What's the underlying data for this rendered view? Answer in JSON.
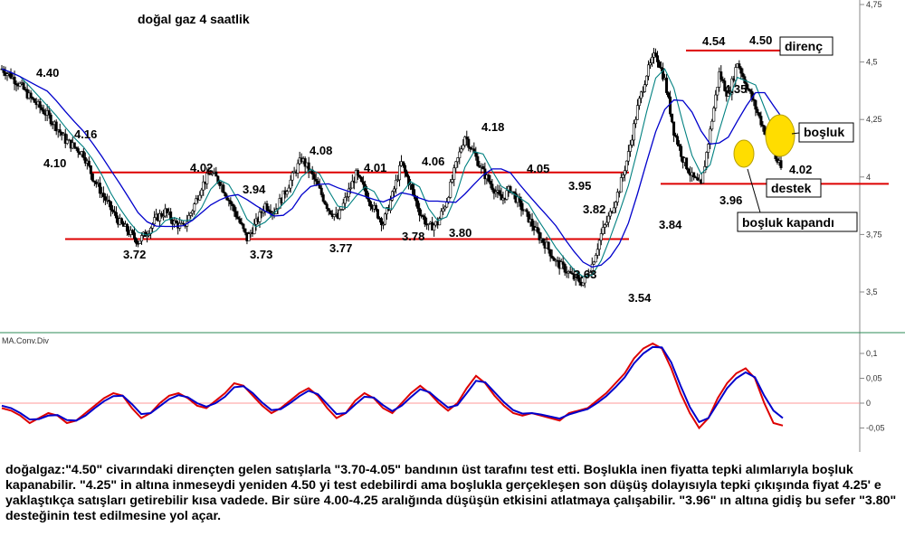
{
  "title": "doğal gaz 4 saatlik",
  "indicator_label": "MA.Conv.Div",
  "commentary": "doğalgaz:\"4.50\" civarındaki dirençten gelen satışlarla \"3.70-4.05\" bandının üst tarafını test etti. Boşlukla inen fiyatta tepki alımlarıyla boşluk kapanabilir. \"4.25\" in altına inmeseydi yeniden 4.50 yi test edebilirdi ama boşlukla gerçekleşen son düşüş dolayısıyla tepki çıkışında fiyat 4.25' e yaklaştıkça satışları getirebilir kısa vadede. Bir süre 4.00-4.25 aralığında düşüşün etkisini atlatmaya çalışabilir. \"3.96\" ın altına gidiş bu sefer \"3.80\" desteğinin test edilmesine yol açar.",
  "chart_data": [
    {
      "type": "candlestick",
      "title": "doğal gaz 4 saatlik",
      "y_ticks": [
        "3,5",
        "3,75",
        "4",
        "4,25",
        "4,5",
        "4,75"
      ],
      "ylim": [
        3.3,
        4.76
      ],
      "grid": false,
      "series": [
        {
          "values": [
            4.47,
            4.44,
            4.4,
            4.35,
            4.31,
            4.27,
            4.22,
            4.16,
            4.13,
            4.1,
            4.0,
            3.93,
            3.86,
            3.8,
            3.76,
            3.72,
            3.76,
            3.82,
            3.85,
            3.8,
            3.78,
            3.86,
            3.96,
            4.02,
            3.98,
            3.9,
            3.82,
            3.73,
            3.8,
            3.88,
            3.85,
            3.92,
            4.0,
            4.08,
            4.02,
            3.94,
            3.86,
            3.82,
            3.92,
            4.01,
            3.94,
            3.86,
            3.8,
            3.92,
            4.06,
            3.96,
            3.85,
            3.78,
            3.8,
            3.9,
            4.05,
            4.18,
            4.1,
            4.02,
            3.96,
            3.9,
            3.95,
            3.88,
            3.82,
            3.75,
            3.7,
            3.63,
            3.6,
            3.56,
            3.54,
            3.62,
            3.75,
            3.84,
            3.95,
            4.1,
            4.3,
            4.45,
            4.54,
            4.42,
            4.2,
            4.08,
            4.0,
            3.96,
            4.2,
            4.45,
            4.35,
            4.5,
            4.4,
            4.3,
            4.2,
            4.1,
            4.02
          ]
        }
      ]
    },
    {
      "type": "line",
      "title": "MA.Conv.Div",
      "y_ticks": [
        "-0,05",
        "0",
        "0,05",
        "0,1"
      ],
      "ylim": [
        -0.07,
        0.12
      ],
      "series": [
        {
          "color": "#dd0000",
          "values": [
            -0.01,
            -0.015,
            -0.025,
            -0.04,
            -0.03,
            -0.02,
            -0.025,
            -0.04,
            -0.035,
            -0.02,
            -0.005,
            0.01,
            0.02,
            0.015,
            -0.01,
            -0.03,
            -0.02,
            0.0,
            0.015,
            0.02,
            0.01,
            -0.005,
            -0.01,
            0.005,
            0.02,
            0.04,
            0.035,
            0.015,
            -0.005,
            -0.02,
            -0.01,
            0.005,
            0.02,
            0.03,
            0.015,
            -0.01,
            -0.03,
            -0.02,
            0.005,
            0.02,
            0.01,
            -0.01,
            -0.02,
            0.0,
            0.02,
            0.035,
            0.02,
            0.0,
            -0.015,
            0.0,
            0.03,
            0.055,
            0.04,
            0.015,
            -0.005,
            -0.02,
            -0.025,
            -0.02,
            -0.025,
            -0.03,
            -0.035,
            -0.02,
            -0.015,
            -0.01,
            0.005,
            0.02,
            0.04,
            0.06,
            0.09,
            0.11,
            0.12,
            0.11,
            0.07,
            0.02,
            -0.02,
            -0.05,
            -0.03,
            0.01,
            0.04,
            0.06,
            0.07,
            0.05,
            0.0,
            -0.04,
            -0.045
          ]
        },
        {
          "color": "#0000cc",
          "values": [
            -0.005,
            -0.01,
            -0.02,
            -0.033,
            -0.032,
            -0.025,
            -0.024,
            -0.034,
            -0.035,
            -0.025,
            -0.01,
            0.004,
            0.014,
            0.015,
            -0.002,
            -0.022,
            -0.02,
            -0.006,
            0.008,
            0.016,
            0.012,
            0.0,
            -0.007,
            0.0,
            0.013,
            0.032,
            0.034,
            0.02,
            0.001,
            -0.014,
            -0.012,
            0.0,
            0.014,
            0.025,
            0.018,
            -0.002,
            -0.022,
            -0.02,
            -0.003,
            0.013,
            0.011,
            -0.004,
            -0.016,
            -0.005,
            0.012,
            0.028,
            0.022,
            0.006,
            -0.009,
            -0.004,
            0.02,
            0.045,
            0.042,
            0.022,
            0.002,
            -0.014,
            -0.021,
            -0.02,
            -0.023,
            -0.027,
            -0.031,
            -0.023,
            -0.017,
            -0.012,
            0.0,
            0.014,
            0.032,
            0.052,
            0.08,
            0.1,
            0.113,
            0.112,
            0.082,
            0.035,
            -0.008,
            -0.038,
            -0.03,
            0.0,
            0.03,
            0.05,
            0.062,
            0.052,
            0.015,
            -0.015,
            -0.03
          ]
        }
      ]
    }
  ],
  "annotations": {
    "price_labels": [
      "4.40",
      "4.16",
      "4.10",
      "3.72",
      "4.02",
      "3.94",
      "3.73",
      "4.08",
      "4.01",
      "3.77",
      "4.06",
      "3.78",
      "3.80",
      "4.18",
      "4.05",
      "3.95",
      "3.82",
      "3.63",
      "3.54",
      "3.84",
      "4.54",
      "4.50",
      "4.35",
      "3.96",
      "4.02"
    ],
    "box_labels": {
      "direnc": "direnç",
      "bosluk": "boşluk",
      "destek": "destek",
      "bosluk_kapandi": "boşluk kapandı"
    },
    "horizontal_lines": [
      {
        "name": "resistance-402",
        "value": 4.02,
        "color": "#dd0000"
      },
      {
        "name": "support-372",
        "value": 3.73,
        "color": "#dd0000"
      },
      {
        "name": "direnc-line",
        "value": 4.55,
        "color": "#dd0000"
      },
      {
        "name": "destek-line",
        "value": 3.97,
        "color": "#dd0000"
      }
    ],
    "colors": {
      "ma_fast": "#008080",
      "ma_slow": "#0000cc",
      "candle": "#000000",
      "highlight": "#ffdd00",
      "zero_line": "#ff9999"
    }
  }
}
